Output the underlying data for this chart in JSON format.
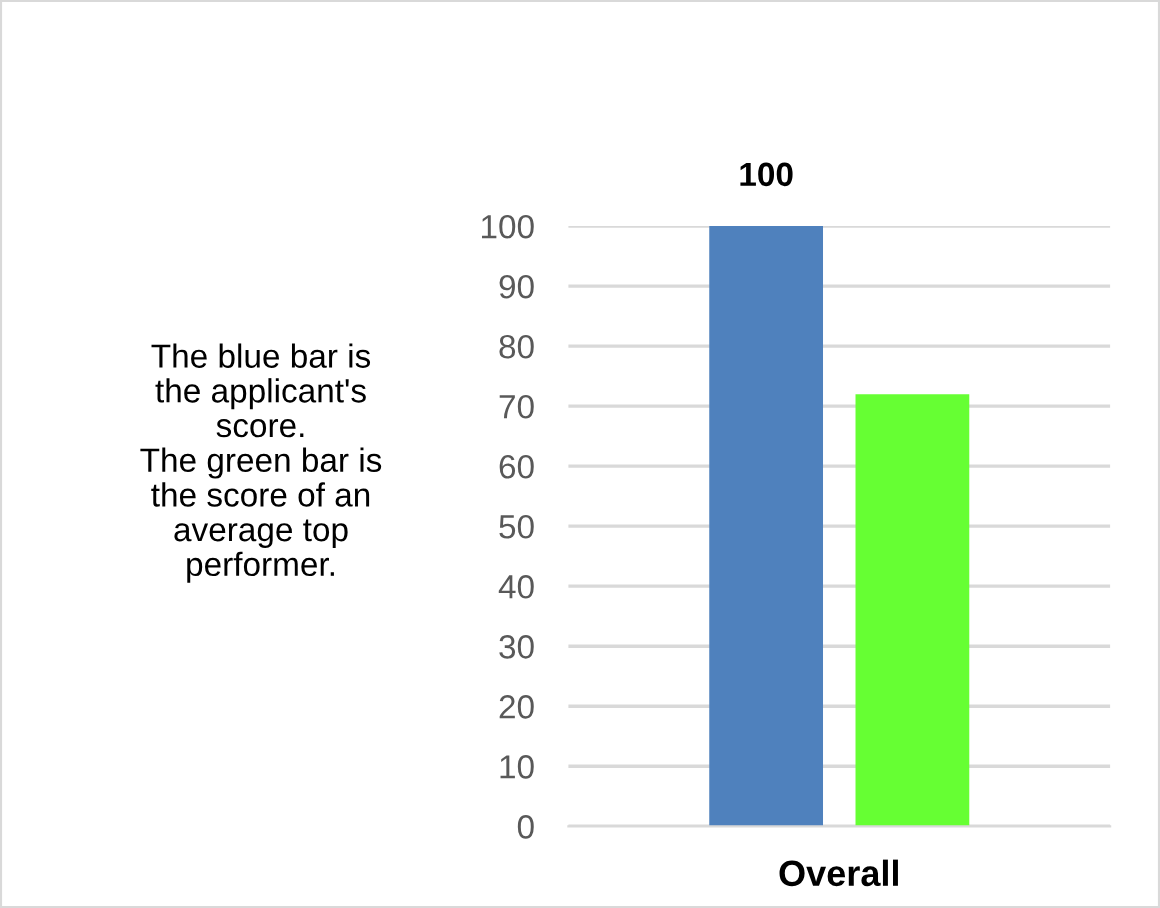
{
  "chart_data": {
    "type": "bar",
    "categories": [
      "Overall"
    ],
    "series": [
      {
        "color": "#4f81bd",
        "values": [
          100
        ],
        "value_labels": [
          "100"
        ]
      },
      {
        "color": "#66ff33",
        "values": [
          72
        ],
        "value_labels": [
          null
        ]
      }
    ],
    "ylim": [
      0,
      100
    ],
    "yticks": [
      0,
      10,
      20,
      30,
      40,
      50,
      60,
      70,
      80,
      90,
      100
    ],
    "grid": "y",
    "annotations": [
      "The blue bar is\nthe applicant's\nscore.\nThe green bar is\nthe score of an\naverage top\nperformer."
    ]
  }
}
